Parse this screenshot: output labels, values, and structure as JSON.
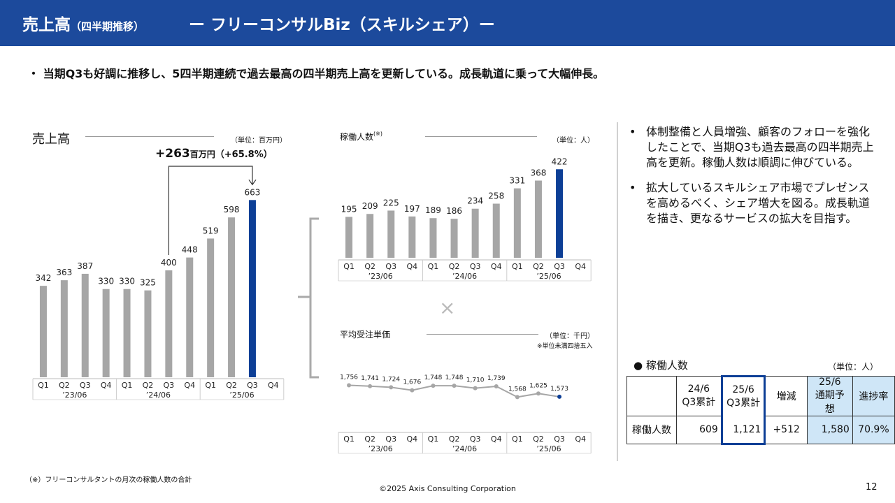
{
  "header": {
    "title": "売上高",
    "title_note": "（四半期推移）",
    "subtitle": "ー フリーコンサルBiz（スキルシェア）ー"
  },
  "lead": "・ 当期Q3も好調に推移し、5四半期連続で過去最高の四半期売上高を更新している。成長軌道に乗って大幅伸長。",
  "sales_chart": {
    "title": "売上高",
    "unit": "（単位：百万円）",
    "growth_amount": "+263",
    "growth_unit": "百万円",
    "growth_pct": "（+65.8%）"
  },
  "workers_chart": {
    "title": "稼働人数",
    "title_note": "(※)",
    "unit": "（単位：人）"
  },
  "price_chart": {
    "title": "平均受注単価",
    "unit": "（単位：千円）",
    "note": "※単位未満四捨五入"
  },
  "times_symbol": "×",
  "quarters": [
    "Q1",
    "Q2",
    "Q3",
    "Q4",
    "Q1",
    "Q2",
    "Q3",
    "Q4",
    "Q1",
    "Q2",
    "Q3",
    "Q4"
  ],
  "years": [
    "’23/06",
    "’24/06",
    "’25/06"
  ],
  "bullets": [
    "体制整備と人員増強、顧客のフォローを強化したことで、当期Q3も過去最高の四半期売上高を更新。稼働人数は順調に伸びている。",
    "拡大しているスキルシェア市場でプレゼンスを高めるべく、シェア増大を図る。成長軌道を描き、更なるサービスの拡大を目指す。"
  ],
  "table": {
    "title": "● 稼働人数",
    "unit": "（単位：人）",
    "col1_top": "24/6",
    "col1_sub": "Q3累計",
    "col2_top": "25/6",
    "col2_sub": "Q3累計",
    "col3": "増減",
    "col4_top": "25/6",
    "col4_sub": "通期予想",
    "col5": "進捗率",
    "row_label": "稼働人数",
    "v1": "609",
    "v2": "1,121",
    "v3": "+512",
    "v4": "1,580",
    "v5": "70.9%"
  },
  "footnote": "（※）フリーコンサルタントの月次の稼働人数の合計",
  "copyright": "©2025 Axis Consulting Corporation",
  "page_number": "12",
  "colors": {
    "header": "#1c4a9c",
    "accent": "#0d3f96",
    "gray": "#a6a6a6",
    "highlight": "#cfe6f7"
  },
  "chart_data": [
    {
      "type": "bar",
      "title": "売上高",
      "unit": "（単位：百万円）",
      "categories": [
        "’23/06 Q1",
        "’23/06 Q2",
        "’23/06 Q3",
        "’23/06 Q4",
        "’24/06 Q1",
        "’24/06 Q2",
        "’24/06 Q3",
        "’24/06 Q4",
        "’25/06 Q1",
        "’25/06 Q2",
        "’25/06 Q3",
        "’25/06 Q4"
      ],
      "values": [
        342,
        363,
        387,
        330,
        330,
        325,
        400,
        448,
        519,
        598,
        663,
        null
      ],
      "labels": [
        "342",
        "363",
        "387",
        "330",
        "330",
        "325",
        "400",
        "448",
        "519",
        "598",
        "663"
      ],
      "highlight_index": 10
    },
    {
      "type": "bar",
      "title": "稼働人数",
      "unit": "（単位：人）",
      "categories": [
        "’23/06 Q1",
        "’23/06 Q2",
        "’23/06 Q3",
        "’23/06 Q4",
        "’24/06 Q1",
        "’24/06 Q2",
        "’24/06 Q3",
        "’24/06 Q4",
        "’25/06 Q1",
        "’25/06 Q2",
        "’25/06 Q3",
        "’25/06 Q4"
      ],
      "values": [
        195,
        209,
        225,
        197,
        189,
        186,
        234,
        258,
        331,
        368,
        422,
        null
      ],
      "labels": [
        "195",
        "209",
        "225",
        "197",
        "189",
        "186",
        "234",
        "258",
        "331",
        "368",
        "422"
      ],
      "highlight_index": 10
    },
    {
      "type": "line",
      "title": "平均受注単価",
      "unit": "（単位：千円）",
      "categories": [
        "’23/06 Q1",
        "’23/06 Q2",
        "’23/06 Q3",
        "’23/06 Q4",
        "’24/06 Q1",
        "’24/06 Q2",
        "’24/06 Q3",
        "’24/06 Q4",
        "’25/06 Q1",
        "’25/06 Q2",
        "’25/06 Q3",
        "’25/06 Q4"
      ],
      "values": [
        1756,
        1741,
        1724,
        1676,
        1748,
        1748,
        1710,
        1739,
        1568,
        1625,
        1573,
        null
      ],
      "labels": [
        "1,756",
        "1,741",
        "1,724",
        "1,676",
        "1,748",
        "1,748",
        "1,710",
        "1,739",
        "1,568",
        "1,625",
        "1,573"
      ],
      "highlight_index": 10
    }
  ]
}
